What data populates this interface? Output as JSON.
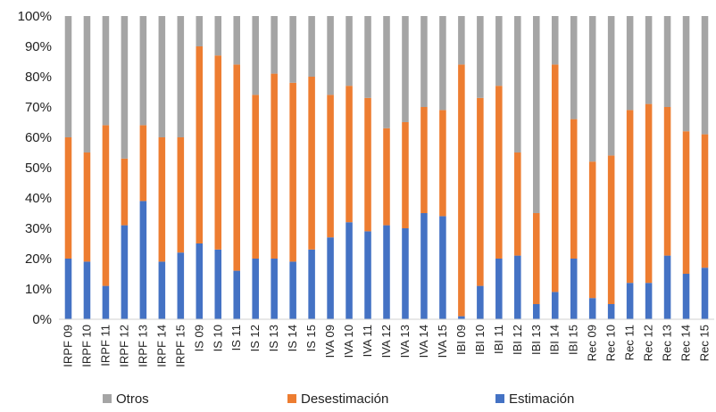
{
  "chart_data": {
    "type": "bar",
    "stacked": true,
    "percent_axis": true,
    "categories": [
      "IRPF 09",
      "IRPF 10",
      "IRPF 11",
      "IRPF 12",
      "IRPF 13",
      "IRPF 14",
      "IRPF 15",
      "IS 09",
      "IS 10",
      "IS 11",
      "IS 12",
      "IS 13",
      "IS 14",
      "IS 15",
      "IVA 09",
      "IVA 10",
      "IVA 11",
      "IVA 12",
      "IVA 13",
      "IVA 14",
      "IVA 15",
      "IBI 09",
      "IBI 10",
      "IBI 11",
      "IBI 12",
      "IBI 13",
      "IBI 14",
      "IBI 15",
      "Rec 09",
      "Rec 10",
      "Rec 11",
      "Rec 12",
      "Rec 13",
      "Rec 14",
      "Rec 15"
    ],
    "series": [
      {
        "name": "Estimación",
        "color": "#4472C4",
        "values": [
          20,
          19,
          11,
          31,
          39,
          19,
          22,
          25,
          23,
          16,
          20,
          20,
          19,
          23,
          27,
          32,
          29,
          31,
          30,
          35,
          34,
          1,
          11,
          20,
          21,
          5,
          9,
          20,
          7,
          5,
          12,
          12,
          21,
          15,
          17
        ]
      },
      {
        "name": "Desestimación",
        "color": "#ED7D31",
        "values": [
          40,
          36,
          53,
          22,
          25,
          41,
          38,
          65,
          64,
          68,
          54,
          61,
          59,
          57,
          47,
          45,
          44,
          32,
          35,
          35,
          35,
          83,
          62,
          57,
          34,
          30,
          75,
          46,
          45,
          49,
          57,
          59,
          49,
          47,
          44
        ]
      },
      {
        "name": "Otros",
        "color": "#A5A5A5",
        "values": [
          40,
          45,
          36,
          47,
          36,
          40,
          40,
          10,
          13,
          16,
          26,
          19,
          22,
          20,
          26,
          23,
          27,
          37,
          35,
          30,
          31,
          16,
          27,
          23,
          45,
          65,
          16,
          34,
          48,
          46,
          31,
          29,
          30,
          38,
          39
        ]
      }
    ],
    "ylim": [
      0,
      100
    ],
    "yticks": [
      "0%",
      "10%",
      "20%",
      "30%",
      "40%",
      "50%",
      "60%",
      "70%",
      "80%",
      "90%",
      "100%"
    ],
    "grid": false,
    "legend": {
      "position": "bottom",
      "order": [
        "Otros",
        "Desestimación",
        "Estimación"
      ]
    }
  }
}
